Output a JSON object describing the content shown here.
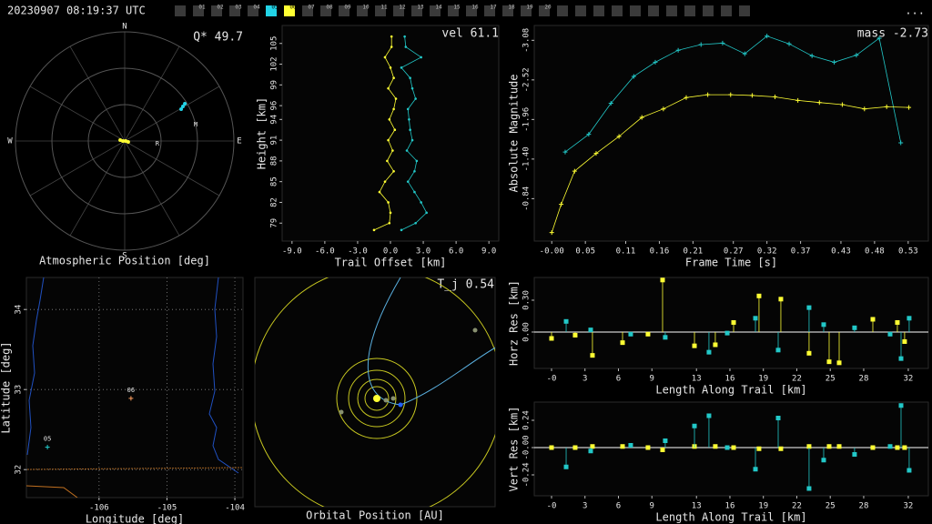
{
  "header": {
    "timestamp": "20230907 08:19:37 UTC",
    "camera_color": "#3a3a3a",
    "cameras": [
      {
        "label": null
      },
      {
        "label": "01"
      },
      {
        "label": "02"
      },
      {
        "label": "03"
      },
      {
        "label": "04"
      },
      {
        "label": "05",
        "color": "#22d3e6"
      },
      {
        "label": "06",
        "color": "#ffff33"
      },
      {
        "label": "07"
      },
      {
        "label": "08"
      },
      {
        "label": "09"
      },
      {
        "label": "10"
      },
      {
        "label": "11"
      },
      {
        "label": "12"
      },
      {
        "label": "13"
      },
      {
        "label": "14"
      },
      {
        "label": "15"
      },
      {
        "label": "16"
      },
      {
        "label": "17"
      },
      {
        "label": "18"
      },
      {
        "label": "19"
      },
      {
        "label": "20"
      },
      {
        "label": null
      },
      {
        "label": null
      },
      {
        "label": null
      },
      {
        "label": null
      },
      {
        "label": null
      },
      {
        "label": null
      },
      {
        "label": null
      },
      {
        "label": null
      },
      {
        "label": null
      },
      {
        "label": null
      },
      {
        "label": null
      }
    ],
    "menu": "..."
  },
  "chart_data": [
    {
      "type": "polar",
      "title": "Atmospheric Position [deg]",
      "annotation": "Q* 49.7",
      "directions": [
        "N",
        "E",
        "S",
        "W"
      ],
      "rlim": [
        0,
        90
      ],
      "rticks": [
        30,
        60,
        90
      ],
      "series": [
        {
          "color": "#ffff33",
          "azimuth": [
            281,
            270,
            90,
            104
          ],
          "zenith": [
            3.75,
            1.5,
            0.75,
            3
          ]
        },
        {
          "color": "#22d3e6",
          "azimuth": [
            60.6,
            59.3,
            58.2
          ],
          "zenith": [
            53.4,
            55.8,
            58.3
          ]
        }
      ],
      "point_labels": [
        {
          "label": "M",
          "azimuth": 77,
          "zenith": 60
        },
        {
          "label": "R",
          "azimuth": 95,
          "zenith": 27
        }
      ]
    },
    {
      "type": "line",
      "annotation": "vel 61.1",
      "x_label": "Trail Offset [km]",
      "y_label": "Height [km]",
      "marker": "dot",
      "xlim": [
        -9.9,
        9.9
      ],
      "ylim": [
        76.4,
        107.6
      ],
      "xticks": [
        {
          "value": -9,
          "label": "-9.0"
        },
        {
          "value": -6,
          "label": "-6.0"
        },
        {
          "value": -3,
          "label": "-3.0"
        },
        {
          "value": 0,
          "label": "0.0"
        },
        {
          "value": 3,
          "label": "3.0"
        },
        {
          "value": 6,
          "label": "6.0"
        },
        {
          "value": 9,
          "label": "9.0"
        }
      ],
      "yticks": [
        79,
        82,
        85,
        88,
        91,
        94,
        96,
        99,
        102,
        105
      ],
      "series": [
        {
          "color": "#ffff33",
          "x": [
            0.1,
            0.1,
            -0.5,
            0.0,
            0.3,
            -0.2,
            0.5,
            0.3,
            -0.1,
            0.4,
            -0.2,
            0.2,
            -0.3,
            0.3,
            -0.5,
            -1.0,
            -0.2,
            0.0,
            -0.1,
            -1.5
          ],
          "values": [
            106,
            104.5,
            103,
            101.5,
            100,
            98.5,
            97,
            95.5,
            94,
            92.5,
            91,
            89.5,
            88,
            86.5,
            85,
            83.5,
            82,
            80.5,
            79,
            78
          ]
        },
        {
          "color": "#22c8c8",
          "x": [
            1.3,
            1.4,
            2.8,
            1.0,
            1.8,
            2.0,
            2.3,
            1.6,
            1.7,
            1.8,
            2.0,
            1.5,
            2.4,
            2.2,
            1.6,
            2.2,
            2.8,
            3.3,
            2.3,
            1.0
          ],
          "values": [
            106,
            104.5,
            103,
            101.5,
            100,
            98.5,
            97,
            95.5,
            94,
            92.5,
            91,
            89.5,
            88,
            86.5,
            85,
            83.5,
            82,
            80.5,
            79,
            78
          ]
        }
      ]
    },
    {
      "type": "line",
      "annotation": "mass -2.73",
      "x_label": "Frame Time [s]",
      "y_label": "Absolute Magnitude",
      "marker": "plus",
      "invert_y": true,
      "xlim": [
        -0.026,
        0.56
      ],
      "ylim": [
        -3.29,
        -0.24
      ],
      "xticks": [
        {
          "value": 0,
          "label": "-0.00"
        },
        0.05,
        0.11,
        0.16,
        0.21,
        0.27,
        0.32,
        0.37,
        0.43,
        0.48,
        0.53
      ],
      "yticks": [
        -3.08,
        -2.52,
        -1.96,
        {
          "value": -1.4,
          "label": "-1.40"
        },
        -0.84
      ],
      "series": [
        {
          "color": "#22c8c8",
          "x": [
            0.02,
            0.055,
            0.088,
            0.122,
            0.154,
            0.188,
            0.222,
            0.254,
            0.287,
            0.32,
            0.353,
            0.387,
            0.42,
            0.453,
            0.487,
            0.519
          ],
          "values": [
            -1.5,
            -1.75,
            -2.19,
            -2.57,
            -2.77,
            -2.94,
            -3.02,
            -3.04,
            -2.89,
            -3.14,
            -3.03,
            -2.86,
            -2.77,
            -2.87,
            -3.11,
            -1.63
          ]
        },
        {
          "color": "#ffff33",
          "x": [
            0,
            0.014,
            0.034,
            0.066,
            0.1,
            0.134,
            0.166,
            0.2,
            0.232,
            0.266,
            0.298,
            0.332,
            0.366,
            0.398,
            0.432,
            0.465,
            0.498,
            0.531
          ],
          "values": [
            -0.36,
            -0.76,
            -1.23,
            -1.48,
            -1.72,
            -1.99,
            -2.11,
            -2.27,
            -2.31,
            -2.31,
            -2.3,
            -2.28,
            -2.23,
            -2.2,
            -2.17,
            -2.11,
            -2.14,
            -2.13
          ]
        }
      ]
    },
    {
      "type": "scatter",
      "x_label": "Longitude [deg]",
      "y_label": "Latitude [deg]",
      "grid": true,
      "xlim": [
        -107.07,
        -103.88
      ],
      "ylim": [
        31.65,
        34.4
      ],
      "xticks": [
        -106,
        -105,
        -104
      ],
      "yticks": [
        32,
        33,
        34
      ],
      "series": [
        {
          "name": "06",
          "color": "#ffa060",
          "x": [
            -105.53
          ],
          "values": [
            32.89
          ]
        },
        {
          "name": "05",
          "color": "#22c8c8",
          "x": [
            -106.76
          ],
          "values": [
            32.28
          ]
        }
      ]
    },
    {
      "type": "orbit",
      "title": "Orbital Position [AU]",
      "annotation": "T_j 0.54"
    },
    {
      "type": "stem",
      "x_label": "Length Along Trail [km]",
      "y_label": "Horz Res [km]",
      "xlim": [
        -1.55,
        33.8
      ],
      "ylim": [
        -0.343,
        0.514
      ],
      "xticks": [
        {
          "value": 0,
          "label": "-0"
        },
        3,
        6,
        9,
        13,
        16,
        19,
        22,
        25,
        28,
        32
      ],
      "yticks": [
        {
          "value": 0.3,
          "label": "0.30"
        },
        {
          "value": 0,
          "label": "0.00"
        }
      ],
      "series": [
        {
          "color": "#ffff33",
          "x": [
            0,
            2.12,
            3.67,
            6.37,
            8.65,
            9.96,
            12.82,
            14.69,
            16.33,
            18.61,
            20.57,
            23.1,
            24.9,
            25.8,
            28.82,
            31.02,
            31.67
          ],
          "values": [
            -0.06,
            -0.03,
            -0.22,
            -0.1,
            -0.02,
            0.49,
            -0.13,
            -0.12,
            0.09,
            0.34,
            0.31,
            -0.2,
            -0.28,
            -0.29,
            0.12,
            0.09,
            -0.09
          ]
        },
        {
          "color": "#22c8c8",
          "x": [
            1.31,
            3.51,
            7.1,
            10.2,
            14.12,
            15.76,
            18.29,
            20.33,
            23.1,
            24.41,
            27.18,
            30.37,
            31.35,
            32.08
          ],
          "values": [
            0.1,
            0.02,
            -0.02,
            -0.05,
            -0.19,
            -0.01,
            0.13,
            -0.17,
            0.23,
            0.07,
            0.04,
            -0.02,
            -0.25,
            0.13
          ]
        }
      ]
    },
    {
      "type": "stem",
      "x_label": "Length Along Trail [km]",
      "y_label": "Vert Res [km]",
      "xlim": [
        -1.55,
        33.8
      ],
      "ylim": [
        -0.424,
        0.4
      ],
      "xticks": [
        {
          "value": 0,
          "label": "-0"
        },
        3,
        6,
        9,
        13,
        16,
        19,
        22,
        25,
        28,
        32
      ],
      "yticks": [
        0.24,
        {
          "value": 0,
          "label": "-0.00"
        },
        -0.24
      ],
      "series": [
        {
          "color": "#ffff33",
          "x": [
            0,
            2.12,
            3.67,
            6.37,
            8.65,
            9.96,
            12.82,
            14.69,
            16.33,
            18.61,
            20.57,
            23.1,
            24.9,
            25.8,
            28.82,
            31.02,
            31.67
          ],
          "values": [
            0,
            0,
            0.01,
            0.01,
            0,
            -0.02,
            0.01,
            0.01,
            0,
            -0.01,
            -0.01,
            0.01,
            0.01,
            0.01,
            0,
            0,
            0
          ]
        },
        {
          "color": "#22c8c8",
          "x": [
            1.31,
            3.51,
            7.1,
            10.2,
            12.82,
            14.12,
            15.76,
            18.29,
            20.33,
            23.1,
            24.41,
            27.18,
            30.37,
            31.35,
            32.08
          ],
          "values": [
            -0.17,
            -0.03,
            0.02,
            0.06,
            0.19,
            0.28,
            0,
            -0.19,
            0.26,
            -0.36,
            -0.11,
            -0.06,
            0.01,
            0.37,
            -0.2
          ]
        }
      ]
    }
  ]
}
